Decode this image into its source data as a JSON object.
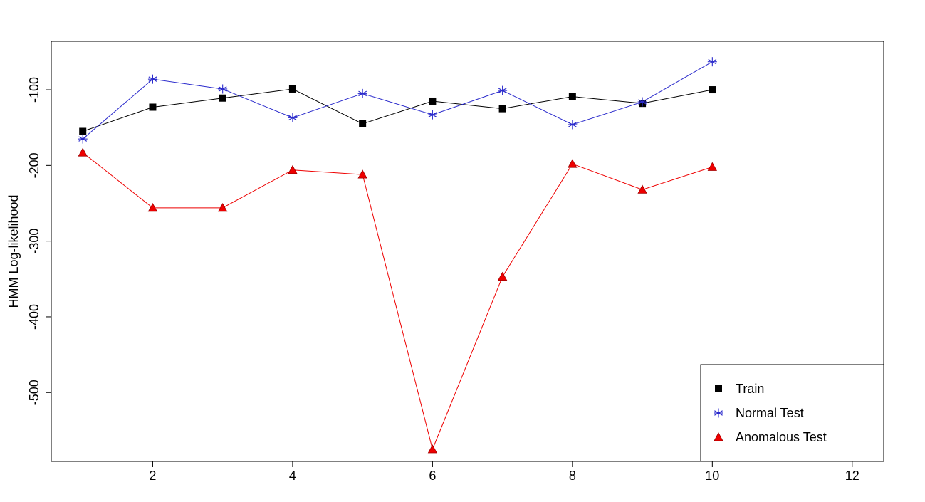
{
  "chart_data": {
    "type": "line",
    "title": "",
    "xlabel": "",
    "ylabel": "HMM Log-likelihood",
    "xlim": [
      0.55,
      12.45
    ],
    "ylim": [
      -591,
      -36
    ],
    "x_ticks": [
      2,
      4,
      6,
      8,
      10,
      12
    ],
    "y_ticks": [
      -100,
      -200,
      -300,
      -400,
      -500
    ],
    "x": [
      1,
      2,
      3,
      4,
      5,
      6,
      7,
      8,
      9,
      10
    ],
    "grid": false,
    "legend_position": "bottom-right",
    "series": [
      {
        "name": "Train",
        "color": "#000000",
        "marker": "square",
        "values": [
          -155,
          -123,
          -111,
          -99,
          -145,
          -115,
          -125,
          -109,
          -118,
          -100
        ]
      },
      {
        "name": "Normal Test",
        "color": "#2b2bcc",
        "marker": "asterisk",
        "values": [
          -165,
          -86,
          -99,
          -137,
          -105,
          -133,
          -101,
          -146,
          -116,
          -63
        ]
      },
      {
        "name": "Anomalous Test",
        "color": "#ee0000",
        "marker": "triangle",
        "values": [
          -183,
          -256,
          -256,
          -206,
          -212,
          -575,
          -347,
          -198,
          -232,
          -202
        ]
      }
    ]
  }
}
